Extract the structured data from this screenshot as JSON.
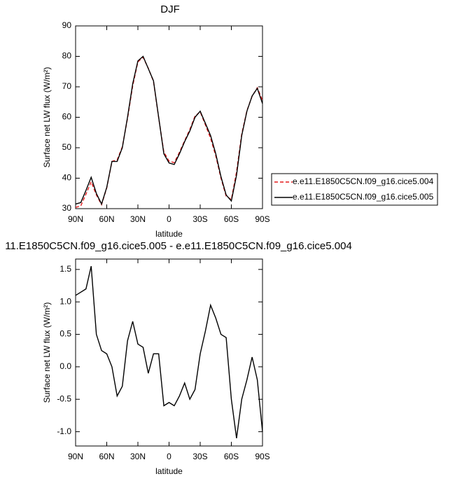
{
  "chart_data": [
    {
      "type": "line",
      "title": "DJF",
      "xlabel": "latitude",
      "ylabel": "Surface net LW flux (W/m²)",
      "x": [
        90,
        85,
        80,
        75,
        70,
        65,
        60,
        55,
        50,
        45,
        40,
        35,
        30,
        25,
        20,
        15,
        10,
        5,
        0,
        -5,
        -10,
        -15,
        -20,
        -25,
        -30,
        -35,
        -40,
        -45,
        -50,
        -55,
        -60,
        -65,
        -70,
        -75,
        -80,
        -85,
        -90
      ],
      "series": [
        {
          "name": "e.e11.E1850C5CN.f09_g16.cice5.004",
          "color": "#e41a1c",
          "line_style": "dashed",
          "values": [
            30.4,
            30.9,
            34.8,
            38.8,
            34.5,
            31.3,
            36.8,
            45.5,
            46.0,
            50.3,
            59.6,
            70.3,
            78.2,
            79.7,
            76.1,
            71.8,
            59.8,
            48.6,
            45.6,
            45.1,
            48.5,
            52.3,
            56.0,
            60.4,
            61.8,
            57.5,
            53.1,
            47.3,
            40.0,
            34.1,
            33.0,
            42.1,
            54.5,
            62.2,
            66.9,
            69.7,
            65.5
          ]
        },
        {
          "name": "e.e11.E1850C5CN.f09_g16.cice5.005",
          "color": "#000000",
          "line_style": "solid",
          "values": [
            31.5,
            32,
            36,
            40.3,
            35,
            31.5,
            37,
            45.5,
            45.5,
            50,
            60,
            71,
            78.5,
            80,
            76,
            72,
            60,
            48,
            45,
            44.5,
            48,
            52,
            55.5,
            60,
            62,
            58,
            54,
            48,
            40.5,
            34.5,
            32.5,
            41,
            54,
            62,
            67,
            69.5,
            64.5
          ]
        }
      ],
      "xlim": [
        90,
        -90
      ],
      "xticks": [
        {
          "value": 90,
          "label": "90N"
        },
        {
          "value": 60,
          "label": "60N"
        },
        {
          "value": 30,
          "label": "30N"
        },
        0,
        {
          "value": -30,
          "label": "30S"
        },
        {
          "value": -60,
          "label": "60S"
        },
        {
          "value": -90,
          "label": "90S"
        }
      ],
      "ylim": [
        30,
        90
      ],
      "yticks": [
        30,
        40,
        50,
        60,
        70,
        80,
        90
      ],
      "legend": "right"
    },
    {
      "type": "line",
      "title": "11.E1850C5CN.f09_g16.cice5.005 - e.e11.E1850C5CN.f09_g16.cice5.004",
      "xlabel": "latitude",
      "ylabel": "Surface net LW flux (W/m²)",
      "x": [
        90,
        85,
        80,
        75,
        70,
        65,
        60,
        55,
        50,
        45,
        40,
        35,
        30,
        25,
        20,
        15,
        10,
        5,
        0,
        -5,
        -10,
        -15,
        -20,
        -25,
        -30,
        -35,
        -40,
        -45,
        -50,
        -55,
        -60,
        -65,
        -70,
        -75,
        -80,
        -85,
        -90
      ],
      "values": [
        1.1,
        1.15,
        1.2,
        1.55,
        0.5,
        0.25,
        0.2,
        0.0,
        -0.45,
        -0.3,
        0.4,
        0.7,
        0.35,
        0.3,
        -0.1,
        0.2,
        0.2,
        -0.6,
        -0.55,
        -0.6,
        -0.45,
        -0.25,
        -0.5,
        -0.35,
        0.2,
        0.55,
        0.95,
        0.75,
        0.5,
        0.45,
        -0.5,
        -1.1,
        -0.5,
        -0.2,
        0.15,
        -0.2,
        -1.0
      ],
      "color": "#000000",
      "xlim": [
        90,
        -90
      ],
      "xticks": [
        {
          "value": 90,
          "label": "90N"
        },
        {
          "value": 60,
          "label": "60N"
        },
        {
          "value": 30,
          "label": "30N"
        },
        0,
        {
          "value": -30,
          "label": "30S"
        },
        {
          "value": -60,
          "label": "60S"
        },
        {
          "value": -90,
          "label": "90S"
        }
      ],
      "ylim": [
        -1.22,
        1.66
      ],
      "yticks": [
        {
          "value": -1.0,
          "label": "-1.0"
        },
        -0.5,
        {
          "value": 0,
          "label": "0.0"
        },
        0.5,
        {
          "value": 1.0,
          "label": "1.0"
        },
        1.5
      ]
    }
  ]
}
